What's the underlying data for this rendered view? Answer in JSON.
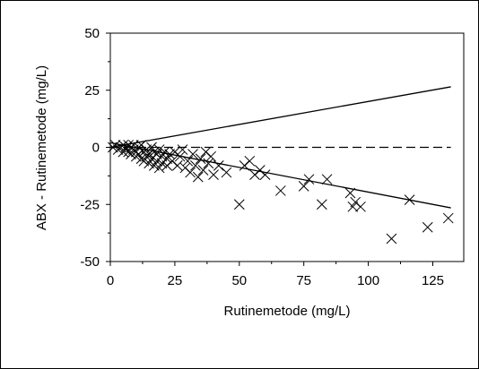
{
  "chart_data": {
    "type": "scatter",
    "title": "",
    "xlabel": "Rutinemetode (mg/L)",
    "ylabel": "ABX - Rutinemetode (mg/L)",
    "xlim": [
      0,
      137
    ],
    "ylim": [
      -50,
      50
    ],
    "x_ticks": [
      0,
      25,
      50,
      75,
      100,
      125
    ],
    "y_ticks": [
      50,
      25,
      0,
      -25,
      -50
    ],
    "grid": false,
    "legend": "none",
    "marker": "x",
    "colors": {
      "points": "#000000",
      "lines": "#000000"
    },
    "series": [
      {
        "type": "scatter",
        "points": [
          [
            1,
            0
          ],
          [
            2,
            1
          ],
          [
            3,
            -1
          ],
          [
            4,
            0
          ],
          [
            5,
            1
          ],
          [
            5,
            -2
          ],
          [
            6,
            0
          ],
          [
            6,
            -1
          ],
          [
            7,
            1
          ],
          [
            7,
            -2
          ],
          [
            8,
            0
          ],
          [
            8,
            -3
          ],
          [
            9,
            1
          ],
          [
            9,
            -1
          ],
          [
            10,
            -2
          ],
          [
            10,
            -4
          ],
          [
            11,
            0
          ],
          [
            11,
            -3
          ],
          [
            12,
            1
          ],
          [
            12,
            -5
          ],
          [
            13,
            -2
          ],
          [
            13,
            -6
          ],
          [
            14,
            -1
          ],
          [
            14,
            -4
          ],
          [
            15,
            -3
          ],
          [
            15,
            -7
          ],
          [
            16,
            0
          ],
          [
            16,
            -5
          ],
          [
            17,
            -2
          ],
          [
            17,
            -8
          ],
          [
            18,
            -3
          ],
          [
            18,
            -6
          ],
          [
            19,
            -1
          ],
          [
            19,
            -9
          ],
          [
            20,
            -4
          ],
          [
            20,
            -7
          ],
          [
            21,
            -2
          ],
          [
            22,
            -5
          ],
          [
            22,
            -8
          ],
          [
            23,
            -3
          ],
          [
            24,
            -6
          ],
          [
            25,
            -2
          ],
          [
            26,
            -8
          ],
          [
            27,
            -4
          ],
          [
            28,
            -1
          ],
          [
            29,
            -9
          ],
          [
            30,
            -6
          ],
          [
            31,
            -11
          ],
          [
            32,
            -3
          ],
          [
            33,
            -8
          ],
          [
            34,
            -13
          ],
          [
            35,
            -5
          ],
          [
            36,
            -10
          ],
          [
            37,
            -2
          ],
          [
            38,
            -7
          ],
          [
            39,
            -4
          ],
          [
            40,
            -12
          ],
          [
            42,
            -8
          ],
          [
            45,
            -11
          ],
          [
            50,
            -25
          ],
          [
            52,
            -8
          ],
          [
            54,
            -6
          ],
          [
            56,
            -12
          ],
          [
            58,
            -10
          ],
          [
            60,
            -12
          ],
          [
            66,
            -19
          ],
          [
            75,
            -17
          ],
          [
            77,
            -14
          ],
          [
            82,
            -25
          ],
          [
            84,
            -14
          ],
          [
            93,
            -20
          ],
          [
            94,
            -26
          ],
          [
            95,
            -24
          ],
          [
            97,
            -26
          ],
          [
            109,
            -40
          ],
          [
            116,
            -23
          ],
          [
            123,
            -35
          ],
          [
            131,
            -31
          ]
        ]
      },
      {
        "type": "line",
        "name": "",
        "points": [
          [
            0,
            0
          ],
          [
            132,
            26.5
          ]
        ]
      },
      {
        "type": "line",
        "name": "",
        "points": [
          [
            0,
            2
          ],
          [
            132,
            -26.5
          ]
        ]
      },
      {
        "type": "line",
        "name": "",
        "style": "dashed",
        "points": [
          [
            0,
            0
          ],
          [
            132,
            0
          ]
        ]
      }
    ]
  }
}
